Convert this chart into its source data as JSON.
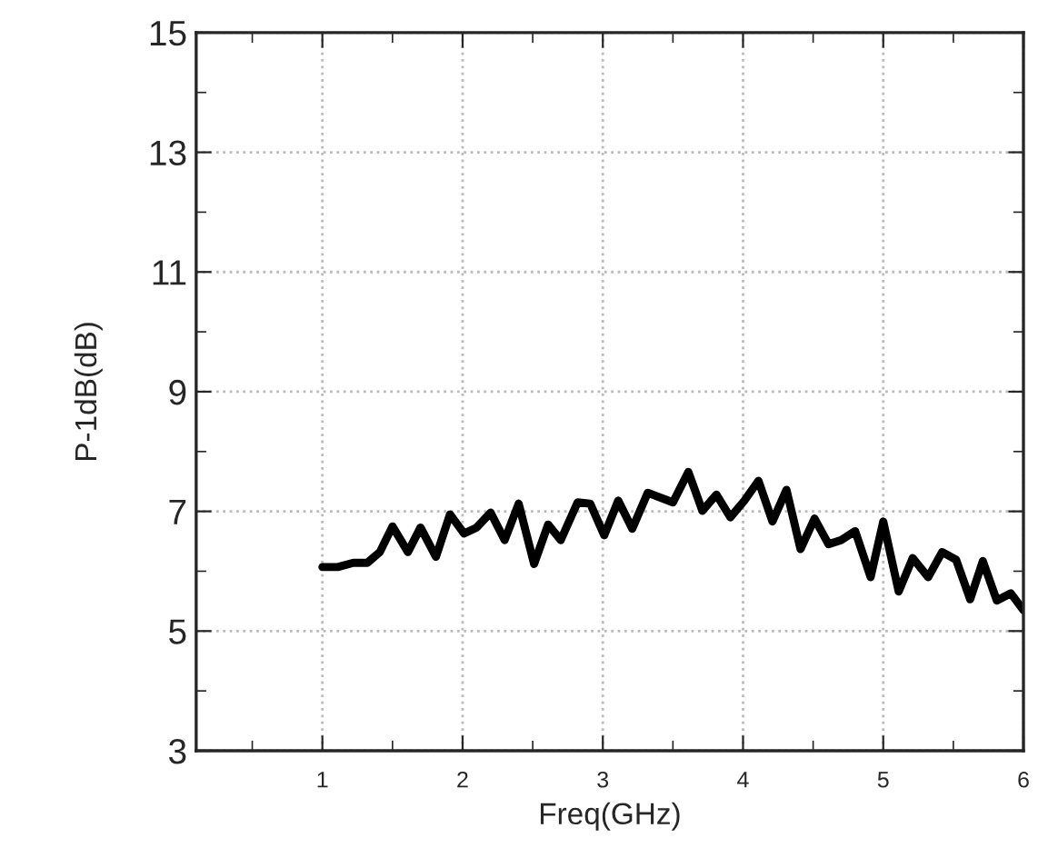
{
  "chart_data": {
    "type": "line",
    "xlabel": "Freq(GHz)",
    "ylabel": "P-1dB(dB)",
    "x": [
      1.0,
      1.11,
      1.22,
      1.32,
      1.41,
      1.5,
      1.61,
      1.7,
      1.81,
      1.91,
      2.01,
      2.1,
      2.2,
      2.3,
      2.4,
      2.51,
      2.61,
      2.7,
      2.82,
      2.91,
      3.01,
      3.11,
      3.21,
      3.32,
      3.5,
      3.61,
      3.71,
      3.81,
      3.91,
      4.01,
      4.11,
      4.21,
      4.31,
      4.41,
      4.51,
      4.61,
      4.7,
      4.8,
      4.91,
      5.0,
      5.11,
      5.21,
      5.32,
      5.42,
      5.52,
      5.62,
      5.71,
      5.81,
      5.91,
      6.0
    ],
    "series": [
      {
        "color": "#000000",
        "values": [
          6.07,
          6.07,
          6.14,
          6.14,
          6.32,
          6.75,
          6.32,
          6.73,
          6.24,
          6.95,
          6.63,
          6.73,
          6.98,
          6.52,
          7.13,
          6.12,
          6.78,
          6.52,
          7.15,
          7.13,
          6.6,
          7.18,
          6.71,
          7.31,
          7.15,
          7.66,
          7.01,
          7.28,
          6.9,
          7.18,
          7.51,
          6.83,
          7.36,
          6.37,
          6.88,
          6.45,
          6.52,
          6.67,
          5.9,
          6.83,
          5.66,
          6.22,
          5.9,
          6.32,
          6.19,
          5.53,
          6.17,
          5.51,
          5.63,
          5.35
        ]
      }
    ],
    "xlim": [
      0.1,
      6
    ],
    "xticks": [
      {
        "value": 0.5,
        "label": null
      },
      1,
      {
        "value": 1.5,
        "label": null
      },
      2,
      {
        "value": 2.5,
        "label": null
      },
      3,
      {
        "value": 3.5,
        "label": null
      },
      4,
      {
        "value": 4.5,
        "label": null
      },
      5,
      {
        "value": 5.5,
        "label": null
      },
      6
    ],
    "ylim": [
      3,
      15
    ],
    "yticks": [
      3,
      {
        "value": 4,
        "label": null
      },
      5,
      {
        "value": 6,
        "label": null
      },
      7,
      {
        "value": 8,
        "label": null
      },
      9,
      {
        "value": 10,
        "label": null
      },
      11,
      {
        "value": 12,
        "label": null
      },
      13,
      {
        "value": 14,
        "label": null
      },
      15
    ],
    "grid": true,
    "legend": false,
    "marker": "none",
    "line_style": "solid"
  }
}
